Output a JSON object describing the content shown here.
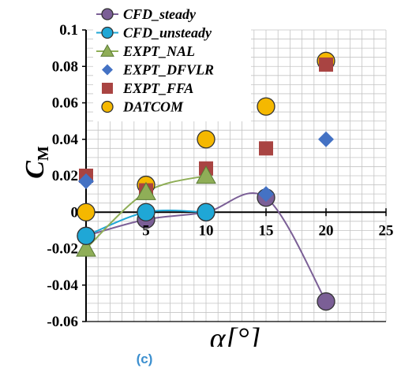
{
  "chart_data": {
    "type": "scatter",
    "title": "",
    "xlabel": "α[°]",
    "ylabel": "C_M",
    "ylabel_main": "C",
    "ylabel_sub": "M",
    "xlim": [
      0,
      25
    ],
    "ylim": [
      -0.06,
      0.1
    ],
    "x_ticks": [
      0,
      5,
      10,
      15,
      20,
      25
    ],
    "x_tick_labels": [
      "5",
      "10",
      "15",
      "20",
      "25"
    ],
    "y_ticks": [
      -0.06,
      -0.04,
      -0.02,
      0,
      0.02,
      0.04,
      0.06,
      0.08,
      0.1
    ],
    "y_tick_labels": [
      "-0.06",
      "-0.04",
      "-0.02",
      "0",
      "0.02",
      "0.04",
      "0.06",
      "0.08",
      "0.1"
    ],
    "grid": true,
    "legend_position": "top-center",
    "series": [
      {
        "name": "CFD_steady",
        "marker": "circle",
        "color": "#7b5f96",
        "line": true,
        "x": [
          0,
          5,
          10,
          15,
          20
        ],
        "y": [
          -0.013,
          -0.004,
          0,
          0.008,
          -0.049
        ]
      },
      {
        "name": "CFD_unsteady",
        "marker": "circle",
        "color": "#1fa7d6",
        "line": true,
        "x": [
          0,
          5,
          10
        ],
        "y": [
          -0.013,
          0,
          0
        ]
      },
      {
        "name": "EXPT_NAL",
        "marker": "triangle",
        "color": "#8fae57",
        "line": true,
        "x": [
          0,
          5,
          10
        ],
        "y": [
          -0.02,
          0.011,
          0.02
        ]
      },
      {
        "name": "EXPT_DFVLR",
        "marker": "diamond",
        "color": "#4472c4",
        "line": false,
        "x": [
          0,
          5,
          10,
          15,
          20
        ],
        "y": [
          0.017,
          0,
          -0.001,
          0.01,
          0.04
        ]
      },
      {
        "name": "EXPT_FFA",
        "marker": "square",
        "color": "#a94442",
        "line": false,
        "x": [
          0,
          5,
          10,
          15,
          20
        ],
        "y": [
          0.02,
          0.012,
          0.024,
          0.035,
          0.081
        ]
      },
      {
        "name": "DATCOM",
        "marker": "circle",
        "color": "#f5b800",
        "line": false,
        "x": [
          0,
          5,
          10,
          15,
          20
        ],
        "y": [
          0,
          0.015,
          0.04,
          0.058,
          0.083
        ]
      }
    ]
  },
  "caption": "(c)"
}
